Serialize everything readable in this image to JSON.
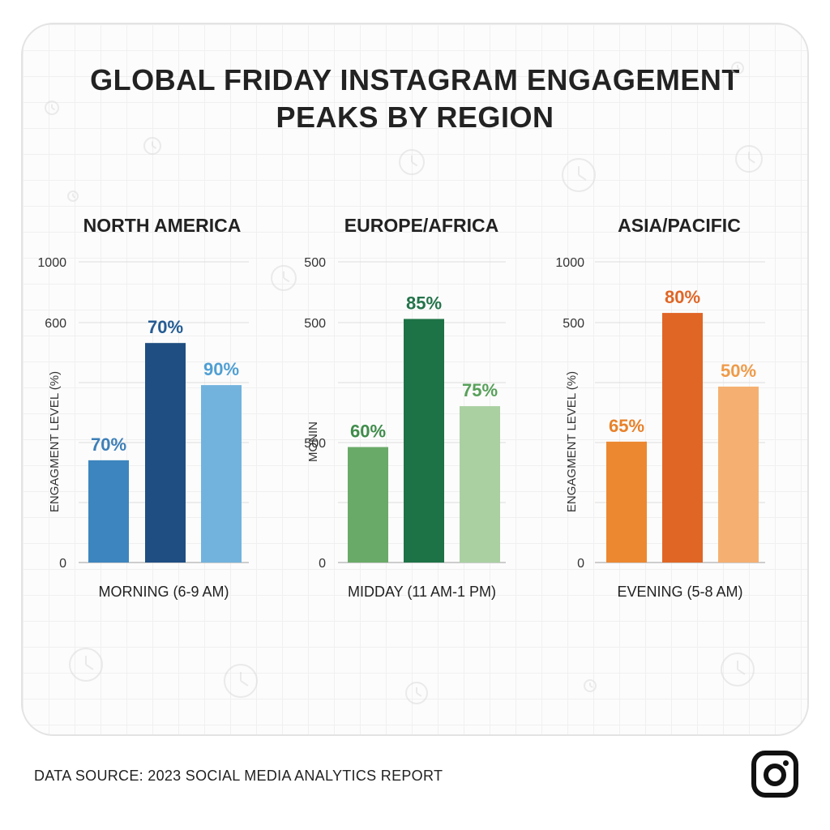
{
  "title_lines": [
    "GLOBAL FRIDAY INSTAGRAM ENGAGEMENT",
    "PEAKS BY REGION"
  ],
  "footer": "DATA SOURCE: 2023 SOCIAL MEDIA ANALYTICS REPORT",
  "chart_data": [
    {
      "type": "bar",
      "title": "NORTH AMERICA",
      "xlabel": "MORNING (6-9 AM)",
      "ylabel": "ENGAGMENT LEVEL (%)",
      "ylim": [
        0,
        1000
      ],
      "y_tick_labels": [
        "1000",
        "600",
        "0"
      ],
      "values": [
        340,
        730,
        590
      ],
      "data_labels": [
        "70%",
        "70%",
        "90%"
      ],
      "colors": [
        "#3d85be",
        "#1f4e82",
        "#72b3de"
      ],
      "label_colors": [
        "#3d7fb8",
        "#255c94",
        "#4f9fd3"
      ]
    },
    {
      "type": "bar",
      "title": "EUROPE/AFRICA",
      "xlabel": "MIDDAY (11 AM-1 PM)",
      "ylabel": "MONIN",
      "ylim": [
        0,
        500
      ],
      "y_tick_labels": [
        "500",
        "500",
        "500",
        "0"
      ],
      "values": [
        192,
        405,
        260
      ],
      "data_labels": [
        "60%",
        "85%",
        "75%"
      ],
      "colors": [
        "#6aaa68",
        "#1d7246",
        "#aad0a2"
      ],
      "label_colors": [
        "#3f8c4a",
        "#23734a",
        "#57a05a"
      ]
    },
    {
      "type": "bar",
      "title": "ASIA/PACIFIC",
      "xlabel": "EVENING (5-8 AM)",
      "ylabel": "ENGAGMENT LEVEL (%)",
      "ylim": [
        0,
        1000
      ],
      "y_tick_labels": [
        "1000",
        "500",
        "0"
      ],
      "values": [
        402,
        830,
        585
      ],
      "data_labels": [
        "65%",
        "80%",
        "50%"
      ],
      "colors": [
        "#ec8830",
        "#e06626",
        "#f5b071"
      ],
      "label_colors": [
        "#e8812a",
        "#e06626",
        "#ef9a48"
      ]
    }
  ]
}
